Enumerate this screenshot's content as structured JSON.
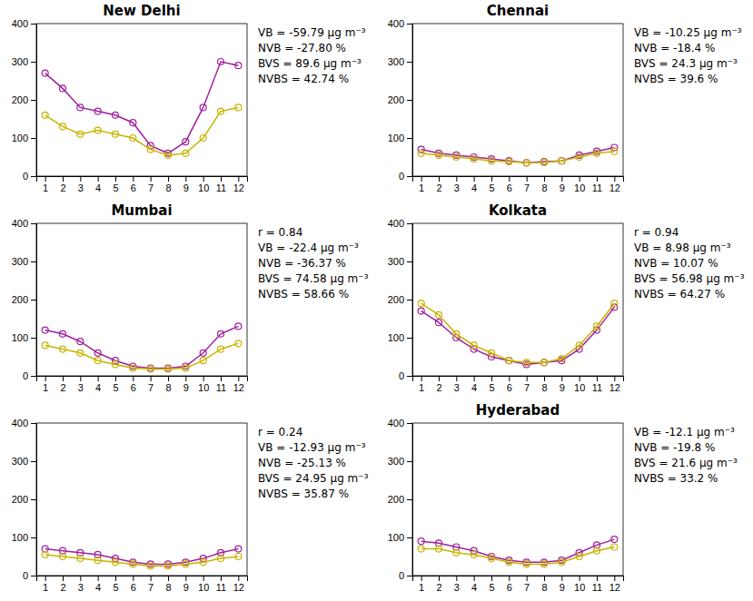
{
  "chart_data": [
    {
      "type": "line",
      "title": "New Delhi",
      "x": [
        1,
        2,
        3,
        4,
        5,
        6,
        7,
        8,
        9,
        10,
        11,
        12
      ],
      "xlim": [
        0.5,
        12.5
      ],
      "xticks": [
        1,
        2,
        3,
        4,
        5,
        6,
        7,
        8,
        9,
        10,
        11,
        12
      ],
      "ylim": [
        0,
        400
      ],
      "yticks": [
        0,
        100,
        200,
        300,
        400
      ],
      "grid": false,
      "series": [
        {
          "color": "#a020a0",
          "marker": "circle",
          "line_style": "solid",
          "values": [
            270,
            230,
            180,
            170,
            160,
            140,
            80,
            60,
            90,
            180,
            300,
            290
          ]
        },
        {
          "color": "#c8b400",
          "marker": "circle",
          "line_style": "solid",
          "values": [
            160,
            130,
            110,
            120,
            110,
            100,
            70,
            55,
            60,
            100,
            170,
            180
          ]
        }
      ],
      "annotations": [
        "VB = -59.79 µg m⁻³",
        "NVB = -27.80 %",
        "BVS = 89.6 µg m⁻³",
        "NVBS = 42.74 %"
      ]
    },
    {
      "type": "line",
      "title": "Chennai",
      "x": [
        1,
        2,
        3,
        4,
        5,
        6,
        7,
        8,
        9,
        10,
        11,
        12
      ],
      "xlim": [
        0.5,
        12.5
      ],
      "xticks": [
        1,
        2,
        3,
        4,
        5,
        6,
        7,
        8,
        9,
        10,
        11,
        12
      ],
      "ylim": [
        0,
        400
      ],
      "yticks": [
        0,
        100,
        200,
        300,
        400
      ],
      "grid": false,
      "series": [
        {
          "color": "#a020a0",
          "marker": "circle",
          "line_style": "solid",
          "values": [
            70,
            60,
            55,
            50,
            45,
            40,
            35,
            38,
            40,
            55,
            65,
            75
          ]
        },
        {
          "color": "#c8b400",
          "marker": "circle",
          "line_style": "solid",
          "values": [
            60,
            55,
            50,
            45,
            40,
            38,
            35,
            36,
            40,
            50,
            60,
            65
          ]
        }
      ],
      "annotations": [
        "VB = -10.25 µg m⁻³",
        "NVB = -18.4 %",
        "BVS = 24.3 µg m⁻³",
        "NVBS = 39.6 %"
      ]
    },
    {
      "type": "line",
      "title": "Mumbai",
      "x": [
        1,
        2,
        3,
        4,
        5,
        6,
        7,
        8,
        9,
        10,
        11,
        12
      ],
      "xlim": [
        0.5,
        12.5
      ],
      "xticks": [
        1,
        2,
        3,
        4,
        5,
        6,
        7,
        8,
        9,
        10,
        11,
        12
      ],
      "ylim": [
        0,
        400
      ],
      "yticks": [
        0,
        100,
        200,
        300,
        400
      ],
      "grid": false,
      "series": [
        {
          "color": "#a020a0",
          "marker": "circle",
          "line_style": "solid",
          "values": [
            120,
            110,
            90,
            60,
            40,
            25,
            20,
            20,
            25,
            60,
            110,
            130
          ]
        },
        {
          "color": "#c8b400",
          "marker": "circle",
          "line_style": "solid",
          "values": [
            80,
            70,
            60,
            40,
            30,
            20,
            18,
            18,
            20,
            40,
            70,
            85
          ]
        }
      ],
      "annotations": [
        "r = 0.84",
        "VB = -22.4 µg m⁻³",
        "NVB = -36.37 %",
        "BVS = 74.58 µg m⁻³",
        "NVBS = 58.66 %"
      ]
    },
    {
      "type": "line",
      "title": "Kolkata",
      "x": [
        1,
        2,
        3,
        4,
        5,
        6,
        7,
        8,
        9,
        10,
        11,
        12
      ],
      "xlim": [
        0.5,
        12.5
      ],
      "xticks": [
        1,
        2,
        3,
        4,
        5,
        6,
        7,
        8,
        9,
        10,
        11,
        12
      ],
      "ylim": [
        0,
        400
      ],
      "yticks": [
        0,
        100,
        200,
        300,
        400
      ],
      "grid": false,
      "series": [
        {
          "color": "#a020a0",
          "marker": "circle",
          "line_style": "solid",
          "values": [
            170,
            140,
            100,
            70,
            50,
            40,
            30,
            35,
            40,
            70,
            120,
            180
          ]
        },
        {
          "color": "#c8b400",
          "marker": "circle",
          "line_style": "solid",
          "values": [
            190,
            160,
            110,
            80,
            60,
            40,
            35,
            35,
            45,
            80,
            130,
            190
          ]
        }
      ],
      "annotations": [
        "r = 0.94",
        "VB = 8.98 µg m⁻³",
        "NVB = 10.07 %",
        "BVS = 56.98 µg m⁻³",
        "NVBS = 64.27 %"
      ]
    },
    {
      "type": "line",
      "x": [
        1,
        2,
        3,
        4,
        5,
        6,
        7,
        8,
        9,
        10,
        11,
        12
      ],
      "xlim": [
        0.5,
        12.5
      ],
      "xticks": [
        1,
        2,
        3,
        4,
        5,
        6,
        7,
        8,
        9,
        10,
        11,
        12
      ],
      "ylim": [
        0,
        400
      ],
      "yticks": [
        0,
        100,
        200,
        300,
        400
      ],
      "grid": false,
      "series": [
        {
          "color": "#a020a0",
          "marker": "circle",
          "line_style": "solid",
          "values": [
            70,
            65,
            60,
            55,
            45,
            35,
            30,
            30,
            35,
            45,
            60,
            70
          ]
        },
        {
          "color": "#c8b400",
          "marker": "circle",
          "line_style": "solid",
          "values": [
            55,
            50,
            45,
            40,
            35,
            30,
            25,
            25,
            30,
            35,
            45,
            50
          ]
        }
      ],
      "annotations": [
        "r = 0.24",
        "VB = -12.93 µg m⁻³",
        "NVB = -25.13 %",
        "BVS = 24.95 µg m⁻³",
        "NVBS = 35.87 %"
      ]
    },
    {
      "type": "line",
      "title": "Hyderabad",
      "x": [
        1,
        2,
        3,
        4,
        5,
        6,
        7,
        8,
        9,
        10,
        11,
        12
      ],
      "xlim": [
        0.5,
        12.5
      ],
      "xticks": [
        1,
        2,
        3,
        4,
        5,
        6,
        7,
        8,
        9,
        10,
        11,
        12
      ],
      "ylim": [
        0,
        400
      ],
      "yticks": [
        0,
        100,
        200,
        300,
        400
      ],
      "grid": false,
      "series": [
        {
          "color": "#a020a0",
          "marker": "circle",
          "line_style": "solid",
          "values": [
            90,
            85,
            75,
            65,
            50,
            40,
            35,
            35,
            40,
            60,
            80,
            95
          ]
        },
        {
          "color": "#c8b400",
          "marker": "circle",
          "line_style": "solid",
          "values": [
            70,
            70,
            60,
            55,
            45,
            35,
            30,
            30,
            35,
            50,
            65,
            75
          ]
        }
      ],
      "annotations": [
        "VB = -12.1 µg m⁻³",
        "NVB = -19.8 %",
        "BVS = 21.6 µg m⁻³",
        "NVBS = 33.2 %"
      ]
    }
  ]
}
